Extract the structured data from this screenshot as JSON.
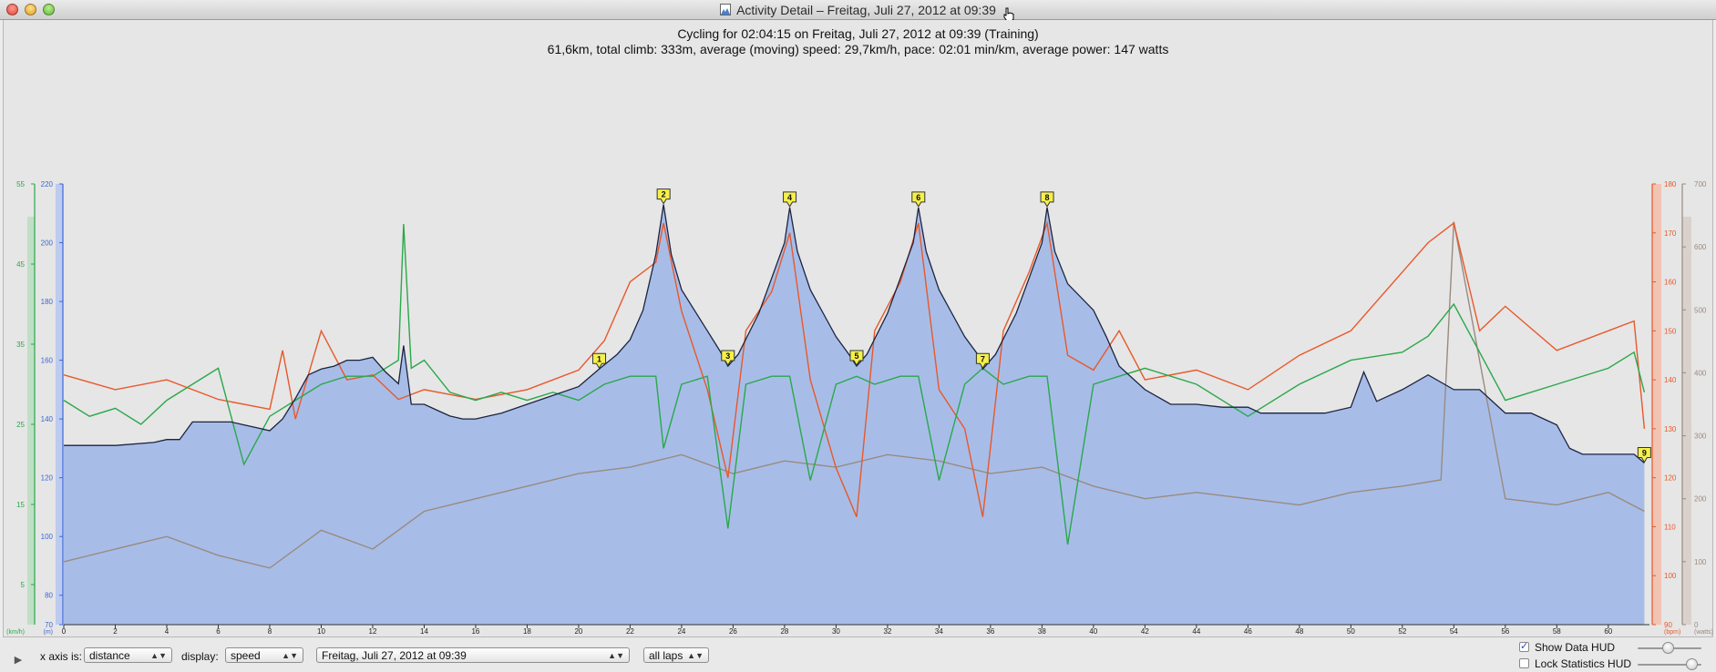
{
  "window": {
    "title": "Activity Detail – Freitag, Juli 27, 2012 at 09:39"
  },
  "header": {
    "line1": "Cycling for 02:04:15 on Freitag, Juli 27, 2012 at 09:39 (Training)",
    "line2": "61,6km, total climb: 333m, average (moving) speed: 29,7km/h, pace: 02:01 min/km, average power: 147 watts"
  },
  "controls": {
    "x_axis_label": "x axis is:",
    "x_axis_value": "distance",
    "display_label": "display:",
    "display_value": "speed",
    "activity_value": "Freitag, Juli 27, 2012 at 09:39",
    "laps_value": "all laps",
    "show_data_hud_label": "Show Data HUD",
    "show_data_hud_checked": true,
    "lock_stats_hud_label": "Lock Statistics HUD",
    "lock_stats_hud_checked": false
  },
  "chart_data": {
    "type": "line",
    "x_label": "distance",
    "x_range": [
      0,
      61.6
    ],
    "x_ticks": [
      "0",
      "2",
      "4",
      "6",
      "8",
      "10",
      "12",
      "14",
      "16",
      "18",
      "20",
      "22",
      "24",
      "26",
      "28",
      "30",
      "32",
      "34",
      "36",
      "38",
      "40",
      "42",
      "44",
      "46",
      "48",
      "50",
      "52",
      "54",
      "56",
      "58",
      "60"
    ],
    "axes": [
      {
        "name": "speed",
        "unit": "(km/h)",
        "range": [
          0,
          55
        ],
        "ticks": [
          "5",
          "15",
          "25",
          "35",
          "45",
          "55"
        ],
        "color": "#2aa84a"
      },
      {
        "name": "altitude",
        "unit": "(m)",
        "range": [
          70,
          220
        ],
        "ticks": [
          "70",
          "80",
          "100",
          "120",
          "140",
          "160",
          "180",
          "200",
          "220"
        ],
        "color": "#3c66d8"
      },
      {
        "name": "heart rate",
        "unit": "(bpm)",
        "range": [
          90,
          180
        ],
        "ticks": [
          "90",
          "100",
          "110",
          "120",
          "130",
          "140",
          "150",
          "160",
          "170",
          "180"
        ],
        "color": "#e8582a"
      },
      {
        "name": "power",
        "unit": "(watts)",
        "range": [
          0,
          700
        ],
        "ticks": [
          "0",
          "100",
          "200",
          "300",
          "400",
          "500",
          "600",
          "700"
        ],
        "color": "#9a8a80"
      }
    ],
    "lap_markers": [
      {
        "label": "1",
        "x": 20.8,
        "alt": 157
      },
      {
        "label": "2",
        "x": 23.3,
        "alt": 213
      },
      {
        "label": "3",
        "x": 25.8,
        "alt": 158
      },
      {
        "label": "4",
        "x": 28.2,
        "alt": 212
      },
      {
        "label": "5",
        "x": 30.8,
        "alt": 158
      },
      {
        "label": "6",
        "x": 33.2,
        "alt": 212
      },
      {
        "label": "7",
        "x": 35.7,
        "alt": 157
      },
      {
        "label": "8",
        "x": 38.2,
        "alt": 212
      },
      {
        "label": "9",
        "x": 61.4,
        "alt": 125
      }
    ],
    "series": [
      {
        "name": "altitude",
        "color": "#3c66d8",
        "x": [
          0,
          1.6,
          2,
          3.5,
          4,
          4.5,
          5,
          5.5,
          6,
          6.5,
          7,
          7.5,
          8,
          8.5,
          9,
          9.5,
          10,
          10.5,
          11,
          11.5,
          12,
          12.5,
          13,
          13.2,
          13.5,
          14,
          14.5,
          15,
          15.5,
          16,
          16.5,
          17,
          18,
          19,
          20,
          20.8,
          21.5,
          22,
          22.5,
          23,
          23.3,
          23.6,
          24,
          24.5,
          25,
          25.5,
          25.8,
          26.2,
          27,
          27.5,
          28,
          28.2,
          28.5,
          29,
          29.5,
          30,
          30.5,
          30.8,
          31.2,
          32,
          32.5,
          33,
          33.2,
          33.5,
          34,
          34.5,
          35,
          35.5,
          35.7,
          36.2,
          37,
          37.5,
          38,
          38.2,
          38.5,
          39,
          40,
          40.5,
          41,
          42,
          43,
          44,
          45,
          46,
          46.5,
          47,
          48,
          49,
          50,
          50.5,
          51,
          52,
          53,
          54,
          55,
          56,
          57,
          58,
          58.5,
          59,
          60,
          61,
          61.4
        ],
        "y": [
          131,
          131,
          131,
          132,
          133,
          133,
          139,
          139,
          139,
          139,
          138,
          137,
          136,
          140,
          147,
          155,
          157,
          158,
          160,
          160,
          161,
          156,
          152,
          165,
          145,
          145,
          143,
          141,
          140,
          140,
          141,
          142,
          145,
          148,
          151,
          157,
          162,
          167,
          177,
          196,
          213,
          196,
          184,
          177,
          170,
          163,
          158,
          162,
          176,
          188,
          200,
          212,
          197,
          184,
          176,
          168,
          162,
          158,
          162,
          176,
          188,
          200,
          212,
          197,
          184,
          176,
          168,
          162,
          157,
          162,
          176,
          188,
          200,
          212,
          197,
          186,
          177,
          168,
          158,
          150,
          145,
          145,
          144,
          144,
          142,
          142,
          142,
          142,
          144,
          156,
          146,
          150,
          155,
          150,
          150,
          142,
          142,
          138,
          130,
          128,
          128,
          128,
          125
        ]
      },
      {
        "name": "heart rate",
        "color": "#e8582a",
        "x": [
          0,
          2,
          4,
          6,
          8,
          8.5,
          9,
          10,
          11,
          12,
          13,
          14,
          16,
          18,
          20,
          21,
          22,
          23,
          23.3,
          24,
          25,
          25.8,
          26.5,
          27.5,
          28.2,
          29,
          30,
          30.8,
          31.5,
          32.5,
          33.2,
          34,
          35,
          35.7,
          36.5,
          37.5,
          38.2,
          39,
          40,
          41,
          42,
          44,
          46,
          48,
          50,
          52,
          53,
          54,
          55,
          56,
          58,
          60,
          61,
          61.4
        ],
        "y": [
          141,
          138,
          140,
          136,
          134,
          146,
          132,
          150,
          140,
          141,
          136,
          138,
          136,
          138,
          142,
          148,
          160,
          164,
          172,
          154,
          138,
          120,
          150,
          158,
          170,
          140,
          122,
          112,
          150,
          160,
          172,
          138,
          130,
          112,
          150,
          162,
          172,
          145,
          142,
          150,
          140,
          142,
          138,
          145,
          150,
          162,
          168,
          172,
          150,
          155,
          146,
          150,
          152,
          130
        ]
      },
      {
        "name": "speed",
        "color": "#2aa84a",
        "x": [
          0,
          1,
          2,
          3,
          4,
          5,
          6,
          7,
          8,
          9,
          10,
          11,
          12,
          13,
          13.2,
          13.5,
          14,
          15,
          16,
          17,
          18,
          19,
          20,
          21,
          22,
          23,
          23.3,
          24,
          25,
          25.8,
          26.5,
          27.5,
          28.2,
          29,
          30,
          30.8,
          31.5,
          32.5,
          33.2,
          34,
          35,
          35.7,
          36.5,
          37.5,
          38.2,
          39,
          40,
          41,
          42,
          44,
          46,
          48,
          50,
          52,
          53,
          54,
          55,
          56,
          58,
          60,
          61,
          61.4
        ],
        "y": [
          28,
          26,
          27,
          25,
          28,
          30,
          32,
          20,
          26,
          28,
          30,
          31,
          31,
          33,
          50,
          32,
          33,
          29,
          28,
          29,
          28,
          29,
          28,
          30,
          31,
          31,
          22,
          30,
          31,
          12,
          30,
          31,
          31,
          18,
          30,
          31,
          30,
          31,
          31,
          18,
          30,
          32,
          30,
          31,
          31,
          10,
          30,
          31,
          32,
          30,
          26,
          30,
          33,
          34,
          36,
          40,
          34,
          28,
          30,
          32,
          34,
          29
        ]
      },
      {
        "name": "power",
        "color": "#9a8a80",
        "x": [
          0,
          2,
          4,
          6,
          8,
          10,
          12,
          14,
          16,
          18,
          20,
          22,
          23,
          24,
          26,
          28,
          30,
          32,
          34,
          36,
          38,
          40,
          42,
          44,
          46,
          48,
          50,
          52,
          53.5,
          54,
          56,
          58,
          60,
          61.4
        ],
        "y": [
          100,
          120,
          140,
          110,
          90,
          150,
          120,
          180,
          200,
          220,
          240,
          250,
          260,
          270,
          240,
          260,
          250,
          270,
          260,
          240,
          250,
          220,
          200,
          210,
          200,
          190,
          210,
          220,
          230,
          640,
          200,
          190,
          210,
          180
        ]
      }
    ]
  }
}
